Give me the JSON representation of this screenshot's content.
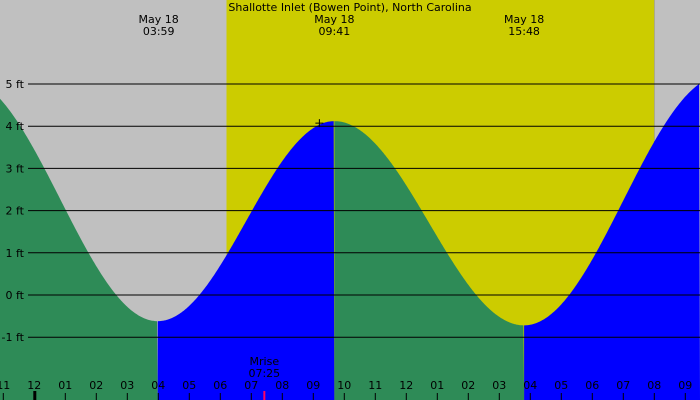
{
  "chart_data": {
    "type": "area",
    "title": "Shallotte Inlet (Bowen Point), North Carolina",
    "y_unit": "ft",
    "ylim": [
      -1.5,
      5.5
    ],
    "xlim": [
      "11",
      "09"
    ],
    "y_ticks": [
      {
        "value": 5,
        "label": "5 ft"
      },
      {
        "value": 4,
        "label": "4 ft"
      },
      {
        "value": 3,
        "label": "3 ft"
      },
      {
        "value": 2,
        "label": "2 ft"
      },
      {
        "value": 1,
        "label": "1 ft"
      },
      {
        "value": 0,
        "label": "0 ft"
      },
      {
        "value": -1,
        "label": "-1 ft"
      }
    ],
    "x_ticks": [
      "11",
      "12",
      "01",
      "02",
      "03",
      "04",
      "05",
      "06",
      "07",
      "08",
      "09",
      "10",
      "11",
      "12",
      "01",
      "02",
      "03",
      "04",
      "05",
      "06",
      "07",
      "08",
      "09"
    ],
    "events": [
      {
        "date": "May 18",
        "time": "03:59",
        "hour": 3.98
      },
      {
        "date": "May 18",
        "time": "09:41",
        "hour": 9.68
      },
      {
        "date": "May 18",
        "time": "15:48",
        "hour": 15.8
      },
      {
        "date": "M",
        "time": "2",
        "hour": 21.9
      }
    ],
    "extremes": [
      {
        "hour": -2.3,
        "value": 5.15,
        "type": "high"
      },
      {
        "hour": 3.98,
        "value": -0.62,
        "type": "low"
      },
      {
        "hour": 9.68,
        "value": 4.12,
        "type": "high"
      },
      {
        "hour": 15.8,
        "value": -0.72,
        "type": "low"
      },
      {
        "hour": 22.2,
        "value": 5.2,
        "type": "high"
      }
    ],
    "daylight": {
      "start_hour": 6.2,
      "end_hour": 20.0
    },
    "moonrise": {
      "label": "Mrise",
      "time": "07:25",
      "hour": 7.42
    },
    "colors": {
      "night": "#c0c0c0",
      "day": "#cccc00",
      "falling": "#2e8b57",
      "rising": "#0000ff",
      "gridline": "#000000",
      "moonrise_marker": "#ff0066"
    }
  }
}
